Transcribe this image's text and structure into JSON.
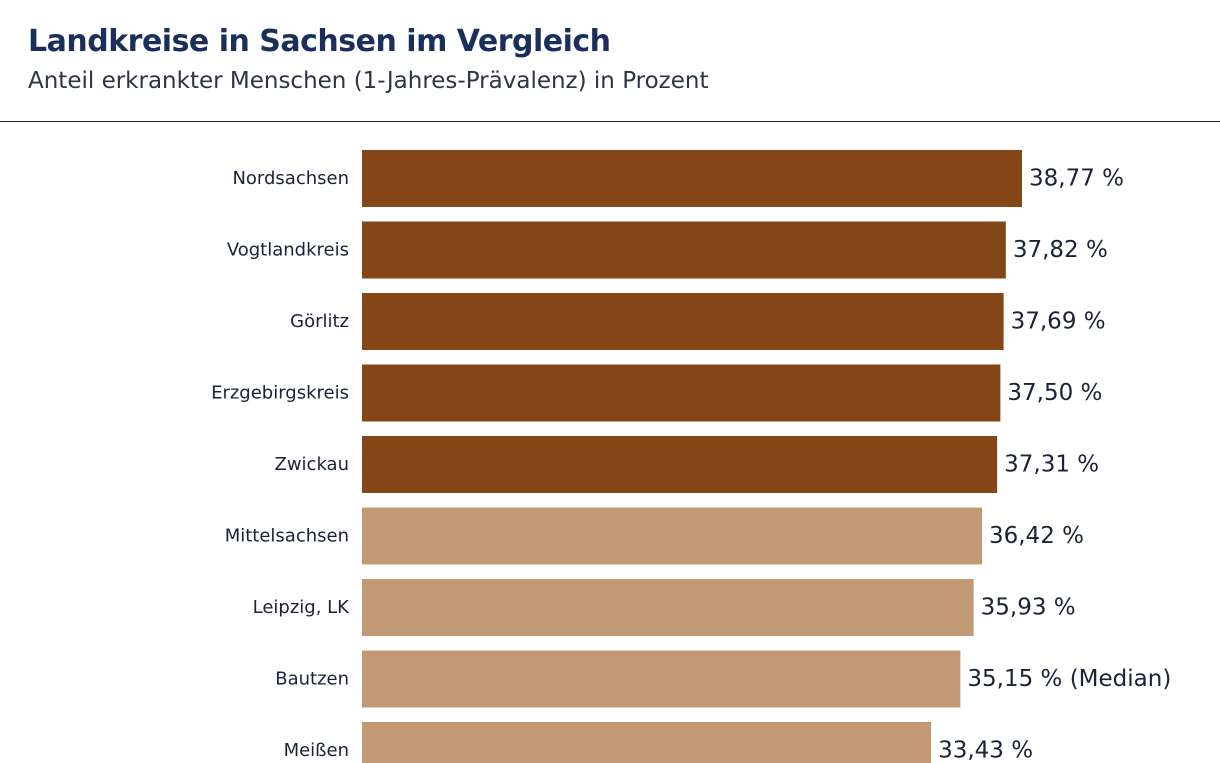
{
  "chart_data": {
    "type": "bar",
    "orientation": "horizontal",
    "title": "Landkreise in Sachsen im Vergleich",
    "subtitle": "Anteil erkrankter Menschen (1-Jahres-Prävalenz) in Prozent",
    "categories": [
      "Nordsachsen",
      "Vogtlandkreis",
      "Görlitz",
      "Erzgebirgskreis",
      "Zwickau",
      "Mittelsachsen",
      "Leipzig, LK",
      "Bautzen",
      "Meißen"
    ],
    "values": [
      38.77,
      37.82,
      37.69,
      37.5,
      37.31,
      36.42,
      35.93,
      35.15,
      33.43
    ],
    "value_labels": [
      "38,77 %",
      "37,82 %",
      "37,69 %",
      "37,50 %",
      "37,31 %",
      "36,42 %",
      "35,93 %",
      "35,15 % (Median)",
      "33,43 %"
    ],
    "highlight_count": 5,
    "xlim": [
      0,
      38.77
    ],
    "grid": false,
    "legend": "none",
    "colors": {
      "highlight": "#854617",
      "normal": "#c19975",
      "title": "#1b2f5c",
      "text": "#1b2238"
    }
  }
}
